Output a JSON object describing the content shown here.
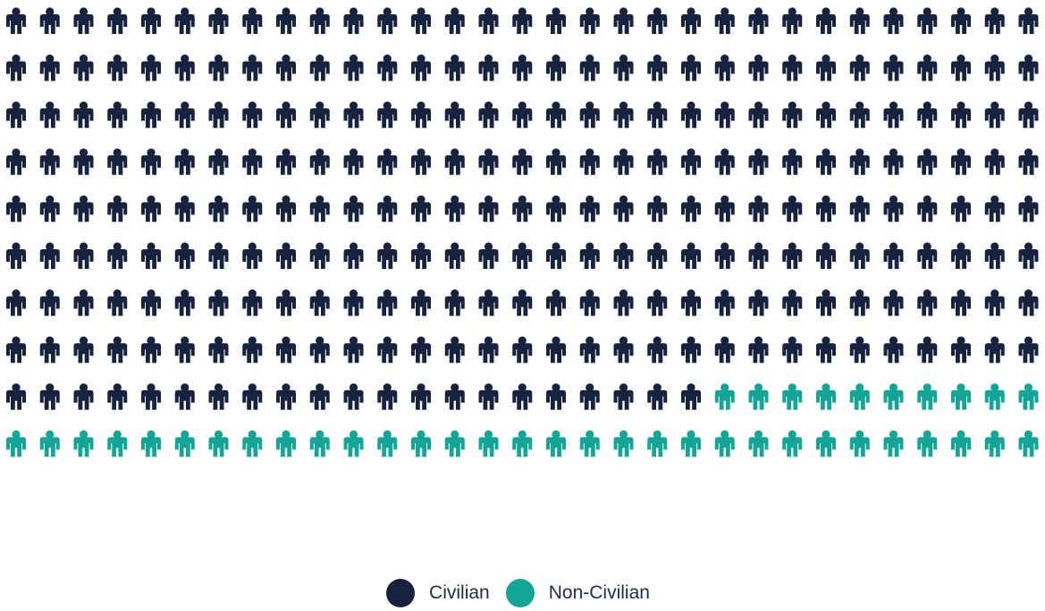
{
  "chart_data": {
    "type": "pictogram",
    "icon": "person-icon",
    "total": 310,
    "rows": 10,
    "columns": 31,
    "series": [
      {
        "name": "Civilian",
        "count": 269,
        "color": "#17223f"
      },
      {
        "name": "Non-Civilian",
        "count": 41,
        "color": "#14a596"
      }
    ],
    "legend_position": "bottom-center"
  },
  "legend": {
    "items": [
      {
        "label": "Civilian",
        "color": "#17223f"
      },
      {
        "label": "Non-Civilian",
        "color": "#14a596"
      }
    ]
  }
}
